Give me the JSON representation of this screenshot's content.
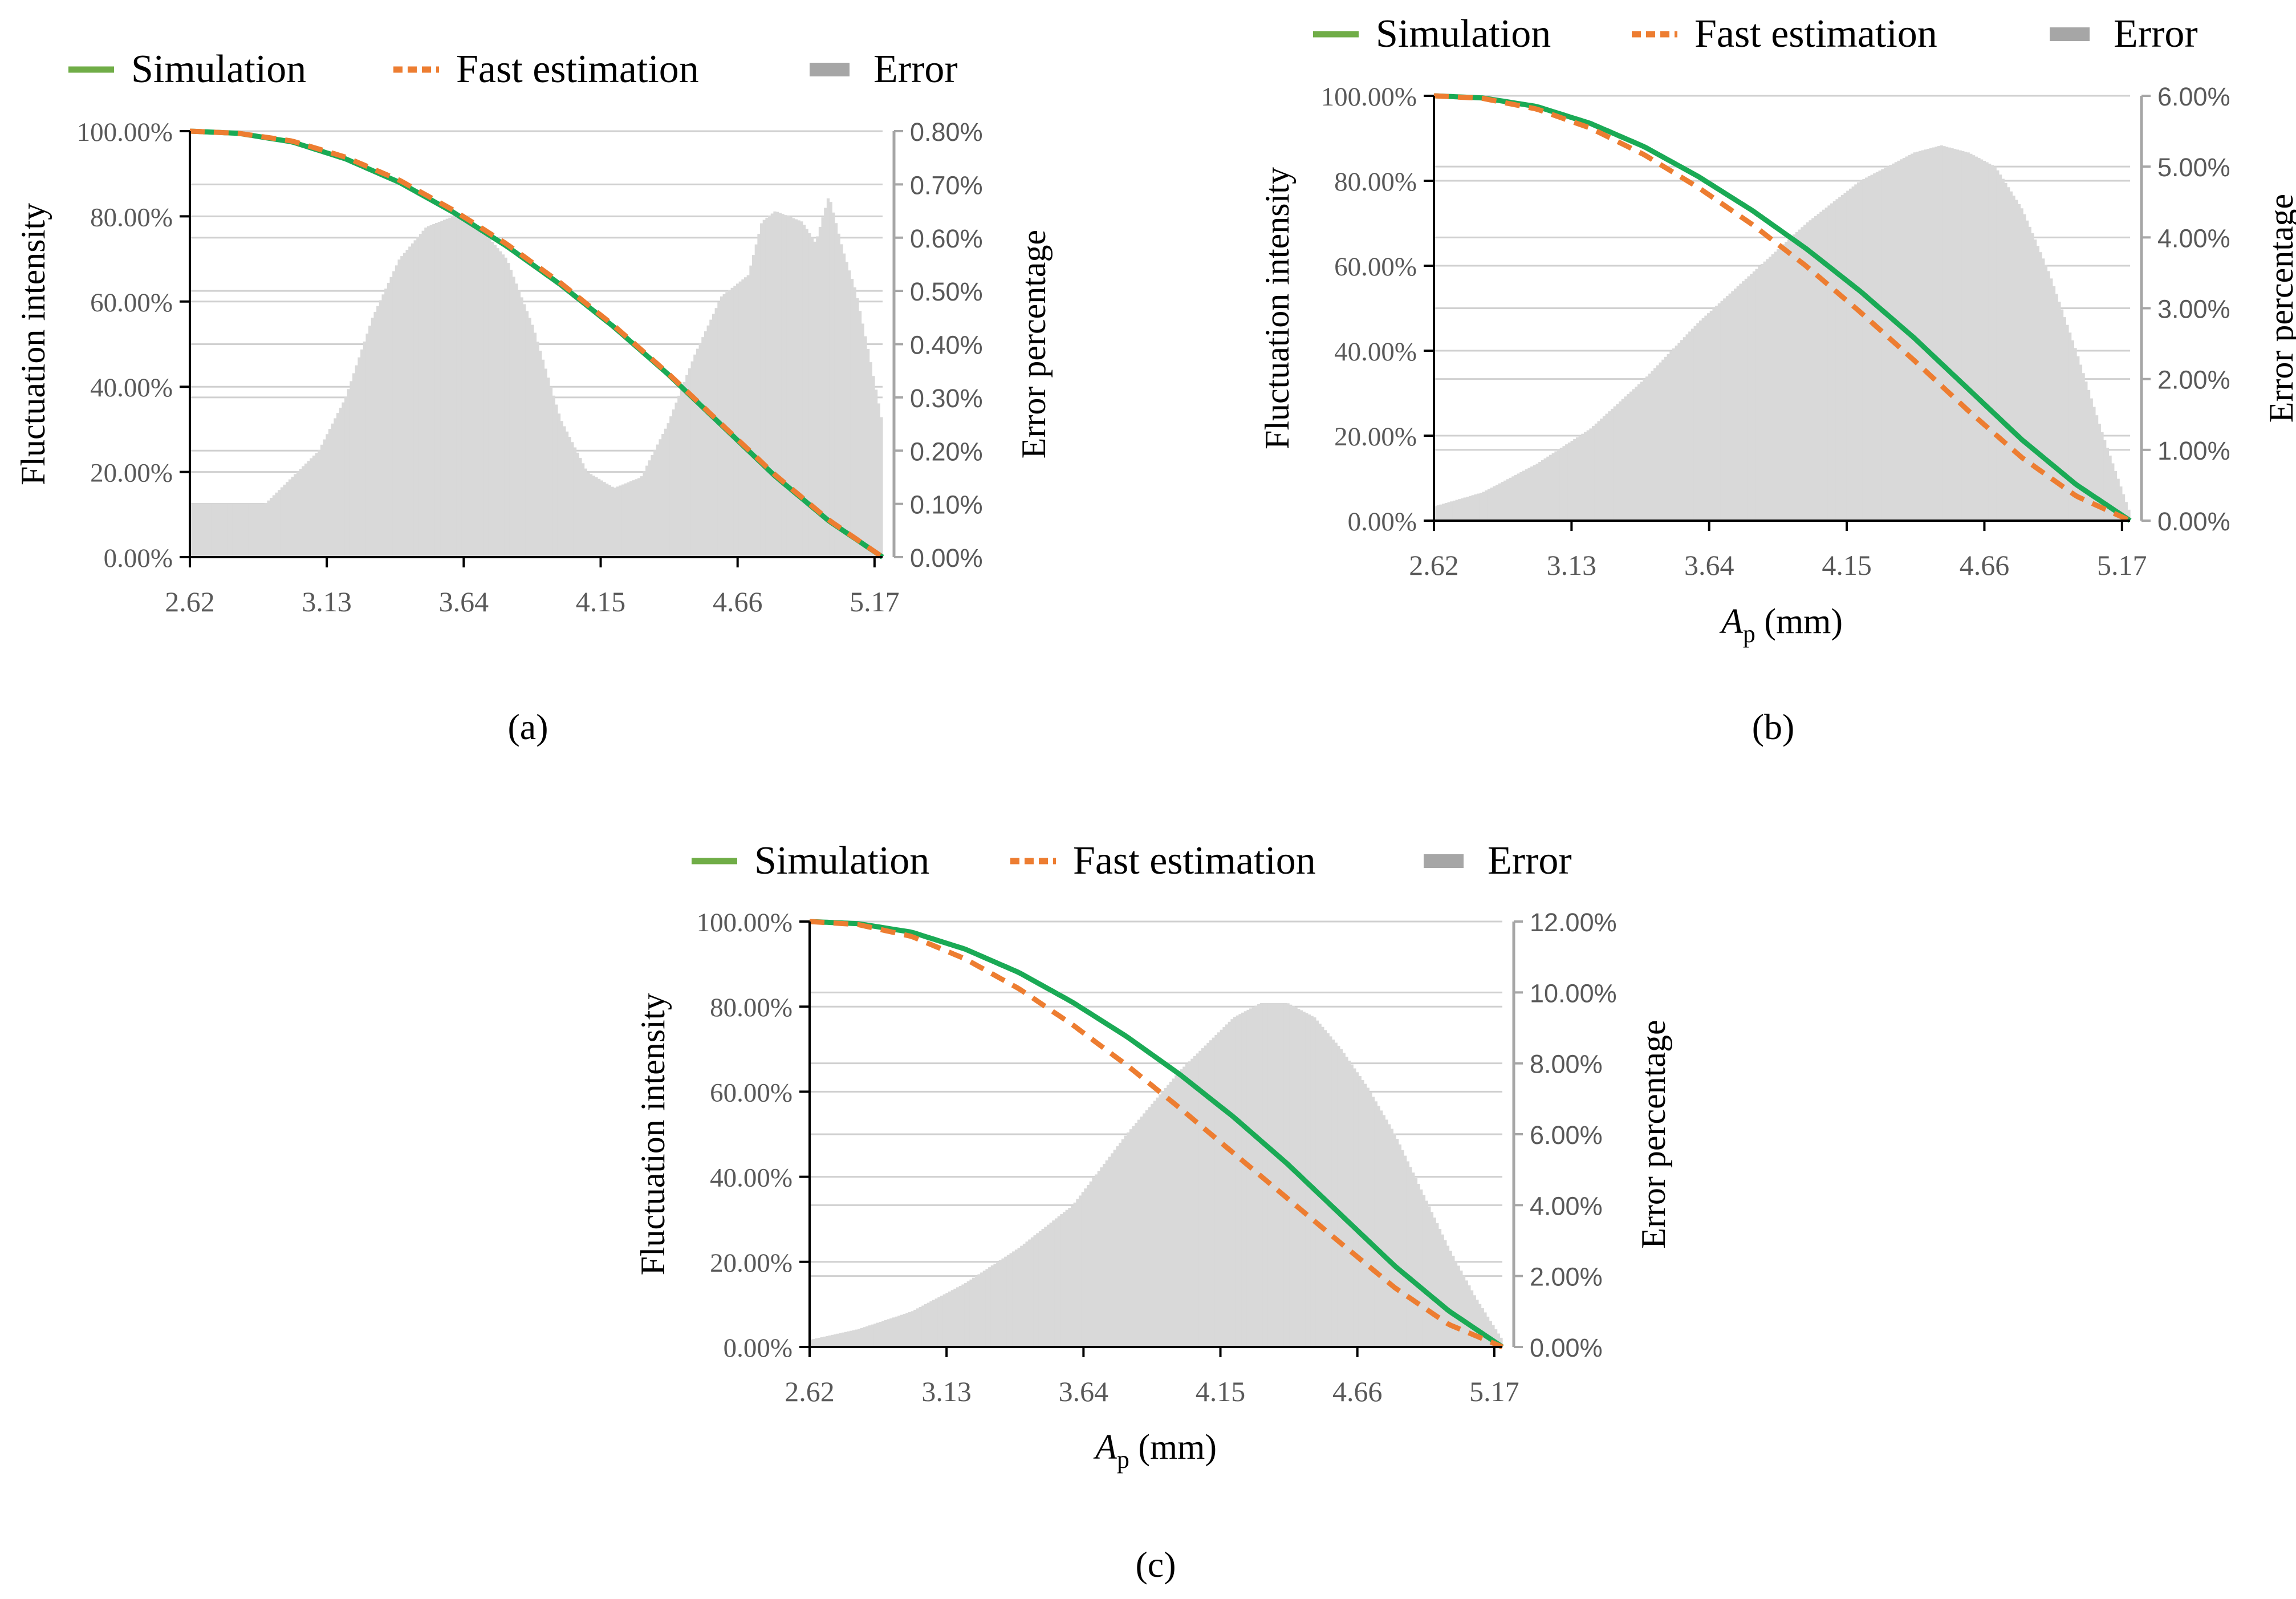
{
  "colors": {
    "simulation": "#1aaa55",
    "legend_simulation": "#70ad47",
    "fast_estimation": "#ed7d31",
    "error_fill": "#d9d9d9",
    "legend_error": "#a6a6a6",
    "grid": "#d0d0d0",
    "axis": "#000000",
    "right_axis": "#a6a6a6",
    "tick_text": "#595959"
  },
  "chart_data": [
    {
      "panel_label": "(a)",
      "panel_letter": "a",
      "type": "line",
      "xlabel": "",
      "ylabel": "Fluctuation  intensity",
      "y2label": "Error percentage",
      "legend": [
        "Simulation",
        "Fast estimation",
        "Error"
      ],
      "legend_position": "top",
      "x_tick_labels": [
        "2.62",
        "3.13",
        "3.64",
        "4.15",
        "4.66",
        "5.17"
      ],
      "x_ticks": [
        2.62,
        3.13,
        3.64,
        4.15,
        4.66,
        5.17
      ],
      "xlim": [
        2.62,
        5.2
      ],
      "ylim": [
        0,
        100
      ],
      "y_tick_labels": [
        "0.00%",
        "20.00%",
        "40.00%",
        "60.00%",
        "80.00%",
        "100.00%"
      ],
      "y2lim": [
        0,
        0.8
      ],
      "y2_tick_labels": [
        "0.00%",
        "0.10%",
        "0.20%",
        "0.30%",
        "0.40%",
        "0.50%",
        "0.60%",
        "0.70%",
        "0.80%"
      ],
      "series": [
        {
          "name": "Simulation",
          "role": "simulation",
          "axis": "left",
          "x": [
            2.62,
            2.8,
            3.0,
            3.2,
            3.4,
            3.6,
            3.8,
            4.0,
            4.2,
            4.4,
            4.6,
            4.8,
            5.0,
            5.2
          ],
          "values": [
            100,
            99.5,
            97.5,
            93.5,
            88,
            81,
            73,
            64,
            54,
            43,
            31,
            19,
            8.5,
            0
          ]
        },
        {
          "name": "Fast estimation",
          "role": "fast",
          "axis": "left",
          "x": [
            2.62,
            2.8,
            3.0,
            3.2,
            3.4,
            3.6,
            3.8,
            4.0,
            4.2,
            4.4,
            4.6,
            4.8,
            5.0,
            5.2
          ],
          "values": [
            100,
            99.5,
            97.7,
            93.9,
            88.5,
            81.5,
            73.5,
            64.4,
            54.3,
            43.2,
            31.2,
            19.3,
            8.7,
            0
          ]
        },
        {
          "name": "Error",
          "role": "error",
          "axis": "right",
          "x": [
            2.62,
            2.8,
            2.9,
            3.0,
            3.1,
            3.2,
            3.3,
            3.4,
            3.5,
            3.6,
            3.7,
            3.8,
            3.9,
            4.0,
            4.1,
            4.2,
            4.3,
            4.4,
            4.5,
            4.6,
            4.7,
            4.75,
            4.8,
            4.9,
            4.95,
            5.0,
            5.05,
            5.1,
            5.15,
            5.2
          ],
          "values": [
            0.1,
            0.1,
            0.1,
            0.15,
            0.2,
            0.3,
            0.45,
            0.56,
            0.62,
            0.64,
            0.62,
            0.56,
            0.43,
            0.26,
            0.16,
            0.13,
            0.15,
            0.25,
            0.38,
            0.49,
            0.53,
            0.63,
            0.65,
            0.63,
            0.59,
            0.68,
            0.58,
            0.5,
            0.38,
            0.25
          ]
        }
      ]
    },
    {
      "panel_label": "(b)",
      "panel_letter": "b",
      "type": "line",
      "xlabel": "(mm)",
      "xlabel_var": "A",
      "xlabel_sub": "p",
      "ylabel": "Fluctuation  intensity",
      "y2label": "Error percentage",
      "legend": [
        "Simulation",
        "Fast estimation",
        "Error"
      ],
      "legend_position": "top",
      "x_tick_labels": [
        "2.62",
        "3.13",
        "3.64",
        "4.15",
        "4.66",
        "5.17"
      ],
      "x_ticks": [
        2.62,
        3.13,
        3.64,
        4.15,
        4.66,
        5.17
      ],
      "xlim": [
        2.62,
        5.2
      ],
      "ylim": [
        0,
        100
      ],
      "y_tick_labels": [
        "0.00%",
        "20.00%",
        "40.00%",
        "60.00%",
        "80.00%",
        "100.00%"
      ],
      "y2lim": [
        0,
        6
      ],
      "y2_tick_labels": [
        "0.00%",
        "1.00%",
        "2.00%",
        "3.00%",
        "4.00%",
        "5.00%",
        "6.00%"
      ],
      "series": [
        {
          "name": "Simulation",
          "role": "simulation",
          "axis": "left",
          "x": [
            2.62,
            2.8,
            3.0,
            3.2,
            3.4,
            3.6,
            3.8,
            4.0,
            4.2,
            4.4,
            4.6,
            4.8,
            5.0,
            5.2
          ],
          "values": [
            100,
            99.5,
            97.5,
            93.5,
            88,
            81,
            73,
            64,
            54,
            43,
            31,
            19,
            8.5,
            0
          ]
        },
        {
          "name": "Fast estimation",
          "role": "fast",
          "axis": "left",
          "x": [
            2.62,
            2.8,
            3.0,
            3.2,
            3.4,
            3.6,
            3.8,
            4.0,
            4.2,
            4.4,
            4.6,
            4.8,
            5.0,
            5.2
          ],
          "values": [
            100,
            99.4,
            96.9,
            92.4,
            86.1,
            78.4,
            69.7,
            59.9,
            49.1,
            37.7,
            25.9,
            14.8,
            5.8,
            0
          ]
        },
        {
          "name": "Error",
          "role": "error",
          "axis": "right",
          "x": [
            2.62,
            2.8,
            3.0,
            3.2,
            3.4,
            3.6,
            3.8,
            4.0,
            4.2,
            4.4,
            4.5,
            4.6,
            4.7,
            4.8,
            4.9,
            5.0,
            5.1,
            5.2
          ],
          "values": [
            0.2,
            0.4,
            0.8,
            1.3,
            2.0,
            2.8,
            3.5,
            4.2,
            4.8,
            5.2,
            5.3,
            5.2,
            5.0,
            4.4,
            3.5,
            2.4,
            1.2,
            0.1
          ]
        }
      ]
    },
    {
      "panel_label": "(c)",
      "panel_letter": "c",
      "type": "line",
      "xlabel": "(mm)",
      "xlabel_var": "A",
      "xlabel_sub": "p",
      "ylabel": "Fluctuation  intensity",
      "y2label": "Error percentage",
      "legend": [
        "Simulation",
        "Fast estimation",
        "Error"
      ],
      "legend_position": "top",
      "x_tick_labels": [
        "2.62",
        "3.13",
        "3.64",
        "4.15",
        "4.66",
        "5.17"
      ],
      "x_ticks": [
        2.62,
        3.13,
        3.64,
        4.15,
        4.66,
        5.17
      ],
      "xlim": [
        2.62,
        5.2
      ],
      "ylim": [
        0,
        100
      ],
      "y_tick_labels": [
        "0.00%",
        "20.00%",
        "40.00%",
        "60.00%",
        "80.00%",
        "100.00%"
      ],
      "y2lim": [
        0,
        12
      ],
      "y2_tick_labels": [
        "0.00%",
        "2.00%",
        "4.00%",
        "6.00%",
        "8.00%",
        "10.00%",
        "12.00%"
      ],
      "series": [
        {
          "name": "Simulation",
          "role": "simulation",
          "axis": "left",
          "x": [
            2.62,
            2.8,
            3.0,
            3.2,
            3.4,
            3.6,
            3.8,
            4.0,
            4.2,
            4.4,
            4.6,
            4.8,
            5.0,
            5.2
          ],
          "values": [
            100,
            99.5,
            97.5,
            93.5,
            88,
            81,
            73,
            64,
            54,
            43,
            31,
            19,
            8.5,
            0
          ]
        },
        {
          "name": "Fast estimation",
          "role": "fast",
          "axis": "left",
          "x": [
            2.62,
            2.8,
            3.0,
            3.2,
            3.4,
            3.6,
            3.8,
            4.0,
            4.2,
            4.4,
            4.6,
            4.8,
            5.0,
            5.2
          ],
          "values": [
            100,
            99.3,
            96.5,
            91.2,
            84.2,
            75.7,
            66.3,
            56.1,
            45.5,
            34.9,
            24.3,
            13.9,
            5.3,
            0
          ]
        },
        {
          "name": "Error",
          "role": "error",
          "axis": "right",
          "x": [
            2.62,
            2.8,
            3.0,
            3.2,
            3.4,
            3.6,
            3.8,
            4.0,
            4.2,
            4.3,
            4.4,
            4.5,
            4.6,
            4.7,
            4.8,
            4.9,
            5.0,
            5.1,
            5.2
          ],
          "values": [
            0.2,
            0.5,
            1.0,
            1.8,
            2.8,
            4.0,
            6.0,
            7.8,
            9.3,
            9.7,
            9.7,
            9.3,
            8.4,
            7.3,
            6.0,
            4.4,
            2.8,
            1.4,
            0.2
          ]
        }
      ]
    }
  ]
}
